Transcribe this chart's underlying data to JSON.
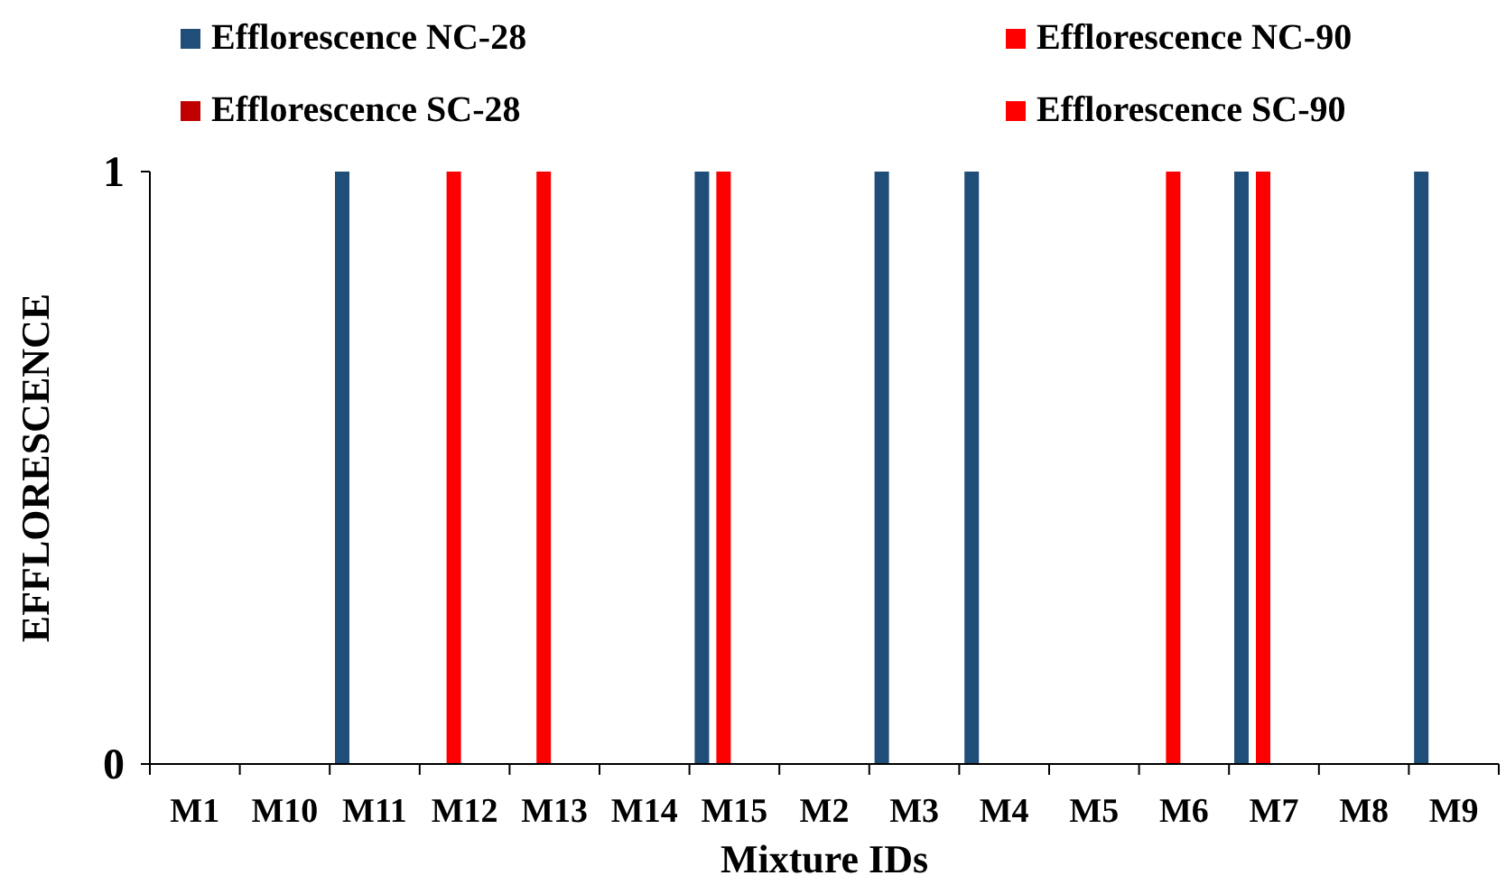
{
  "chart_data": {
    "type": "bar",
    "xlabel": "Mixture IDs",
    "ylabel": "EFFLORESCENCE",
    "categories": [
      "M1",
      "M10",
      "M11",
      "M12",
      "M13",
      "M14",
      "M15",
      "M2",
      "M3",
      "M4",
      "M5",
      "M6",
      "M7",
      "M8",
      "M9"
    ],
    "series": [
      {
        "name": "Efflorescence NC-28",
        "color": "#1f4e79",
        "values": [
          0,
          0,
          1,
          0,
          0,
          0,
          1,
          0,
          1,
          1,
          0,
          0,
          1,
          0,
          1
        ]
      },
      {
        "name": "Efflorescence NC-90",
        "color": "#ff0000",
        "values": [
          0,
          0,
          0,
          1,
          1,
          0,
          1,
          0,
          0,
          0,
          0,
          1,
          1,
          0,
          0
        ]
      },
      {
        "name": "Efflorescence SC-28",
        "color": "#c00000",
        "values": [
          0,
          0,
          0,
          0,
          0,
          0,
          0,
          0,
          0,
          0,
          0,
          0,
          0,
          0,
          0
        ]
      },
      {
        "name": "Efflorescence SC-90",
        "color": "#ff0000",
        "values": [
          0,
          0,
          0,
          0,
          0,
          0,
          0,
          0,
          0,
          0,
          0,
          0,
          0,
          0,
          0
        ]
      }
    ],
    "ylim": [
      0,
      1
    ],
    "yticks": [
      0,
      1
    ],
    "grid": false,
    "legend": "top"
  }
}
